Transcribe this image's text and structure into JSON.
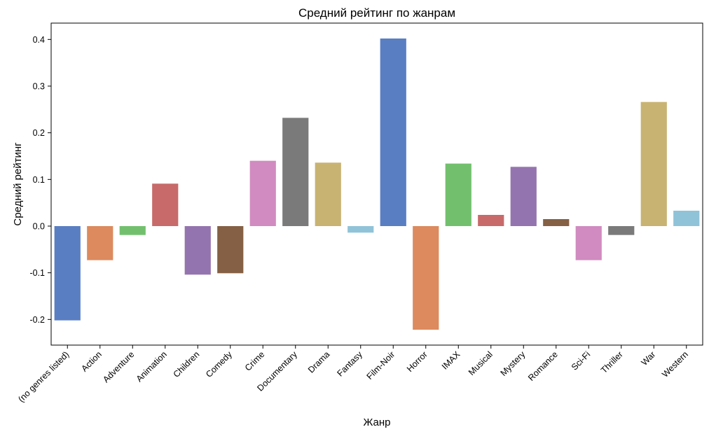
{
  "chart_data": {
    "type": "bar",
    "title": "Средний рейтинг по жанрам",
    "xlabel": "Жанр",
    "ylabel": "Средний рейтинг",
    "ylim": [
      -0.255,
      0.435
    ],
    "y_ticks": [
      -0.2,
      -0.1,
      0.0,
      0.1,
      0.2,
      0.3,
      0.4
    ],
    "y_tick_labels": [
      "-0.2",
      "-0.1",
      "0.0",
      "0.1",
      "0.2",
      "0.3",
      "0.4"
    ],
    "grid": false,
    "categories": [
      "(no genres listed)",
      "Action",
      "Adventure",
      "Animation",
      "Children",
      "Comedy",
      "Crime",
      "Documentary",
      "Drama",
      "Fantasy",
      "Film-Noir",
      "Horror",
      "IMAX",
      "Musical",
      "Mystery",
      "Romance",
      "Sci-Fi",
      "Thriller",
      "War",
      "Western"
    ],
    "values": [
      -0.202,
      -0.073,
      -0.019,
      0.091,
      -0.104,
      -0.101,
      0.14,
      0.232,
      0.136,
      -0.014,
      0.402,
      -0.222,
      0.134,
      0.024,
      0.127,
      0.015,
      -0.073,
      -0.019,
      0.266,
      0.033
    ],
    "colors": [
      "#5a7ec2",
      "#dc8a5e",
      "#72c06e",
      "#c86a6a",
      "#9474ae",
      "#856044",
      "#d18bc0",
      "#7a7a7a",
      "#c8b372",
      "#90c3d8",
      "#5a7ec2",
      "#dc8a5e",
      "#72c06e",
      "#c86a6a",
      "#9474ae",
      "#856044",
      "#d18bc0",
      "#7a7a7a",
      "#c8b372",
      "#90c3d8"
    ]
  }
}
